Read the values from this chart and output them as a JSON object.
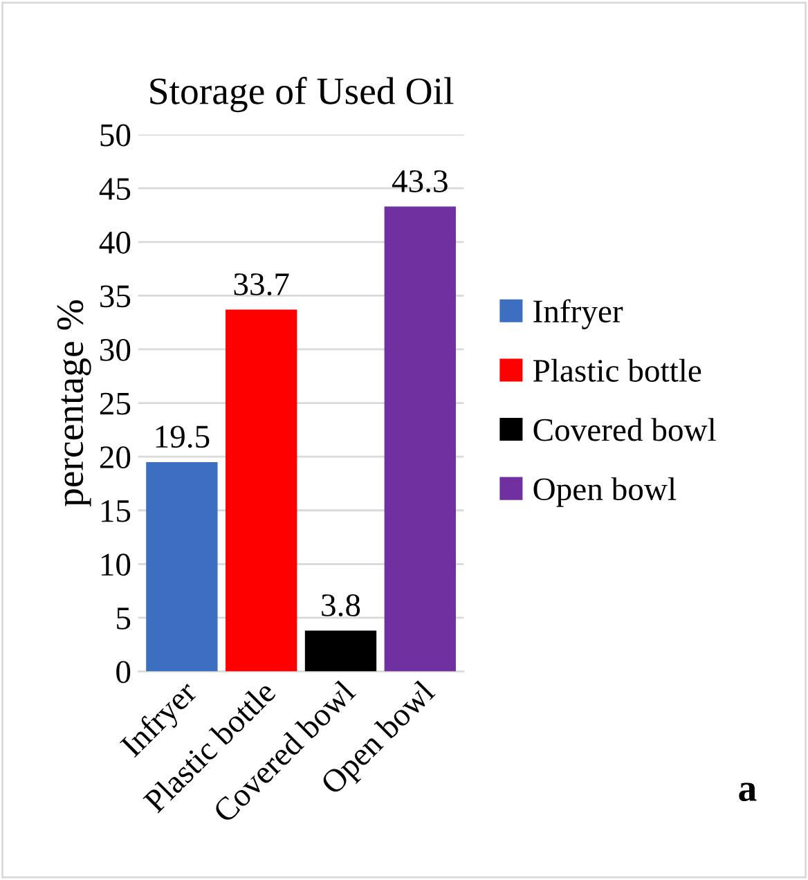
{
  "chart_data": {
    "type": "bar",
    "title": "Storage of Used Oil",
    "ylabel": "percentage %",
    "categories": [
      "Infryer",
      "Plastic bottle",
      "Covered bowl",
      "Open bowl"
    ],
    "series": [
      {
        "name": "Infryer",
        "color": "#3d6fc0",
        "values": [
          19.5,
          null,
          null,
          null
        ]
      },
      {
        "name": "Plastic bottle",
        "color": "#ff0000",
        "values": [
          null,
          33.7,
          null,
          null
        ]
      },
      {
        "name": "Covered bowl",
        "color": "#000000",
        "values": [
          null,
          null,
          3.8,
          null
        ]
      },
      {
        "name": "Open bowl",
        "color": "#7030a0",
        "values": [
          null,
          null,
          null,
          43.3
        ]
      }
    ],
    "ylim": [
      0,
      50
    ],
    "yticks": [
      0,
      5,
      10,
      15,
      20,
      25,
      30,
      35,
      40,
      45,
      50
    ],
    "grid": "y",
    "data_labels": true,
    "legend": "right",
    "annotations": [
      "a"
    ]
  }
}
